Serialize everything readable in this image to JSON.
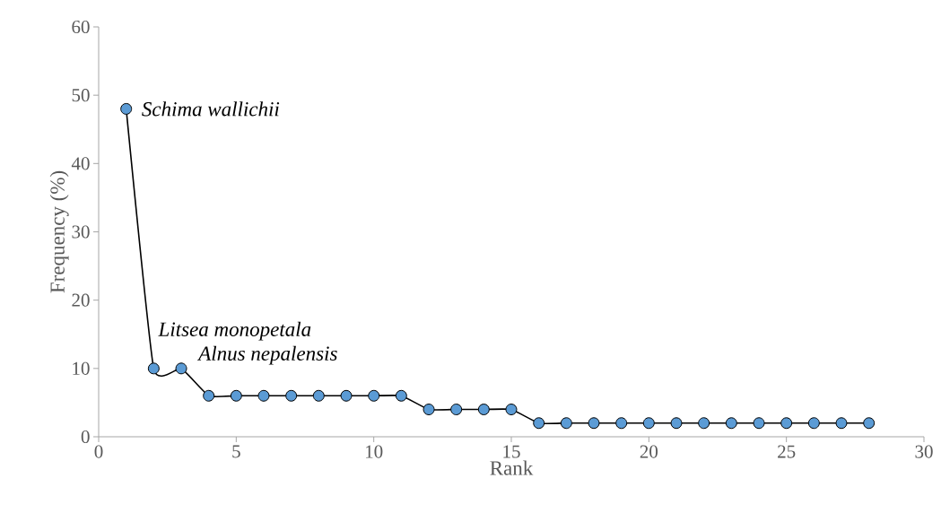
{
  "chart_data": {
    "type": "line",
    "xlabel": "Rank",
    "ylabel": "Frequency (%)",
    "x": [
      1,
      2,
      3,
      4,
      5,
      6,
      7,
      8,
      9,
      10,
      11,
      12,
      13,
      14,
      15,
      16,
      17,
      18,
      19,
      20,
      21,
      22,
      23,
      24,
      25,
      26,
      27,
      28
    ],
    "series": [
      {
        "color": "#5b9bd5",
        "values": [
          48,
          10,
          10,
          6,
          6,
          6,
          6,
          6,
          6,
          6,
          6,
          4,
          4,
          4,
          4,
          2,
          2,
          2,
          2,
          2,
          2,
          2,
          2,
          2,
          2,
          2,
          2,
          2
        ]
      }
    ],
    "marker": "circle",
    "xlim": [
      0,
      30
    ],
    "ylim": [
      0,
      60
    ],
    "xticks": [
      0,
      5,
      10,
      15,
      20,
      25,
      30
    ],
    "yticks": [
      0,
      10,
      20,
      30,
      40,
      50,
      60
    ],
    "annotations": [
      {
        "text": "Schima wallichii",
        "x": 1,
        "y": 48
      },
      {
        "text": "Litsea monopetala",
        "x": 2,
        "y": 10
      },
      {
        "text": "Alnus nepalensis",
        "x": 3,
        "y": 10
      }
    ]
  }
}
